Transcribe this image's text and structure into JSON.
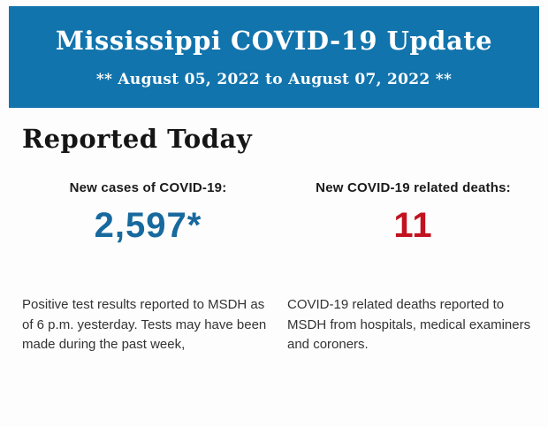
{
  "page": {
    "background_color": "#fdfdfd"
  },
  "header": {
    "title": "Mississippi COVID-19 Update",
    "subtitle": "** August 05, 2022 to August 07, 2022 **",
    "background_color": "#1274ac",
    "text_color": "#ffffff"
  },
  "report": {
    "heading": "Reported Today",
    "stats": [
      {
        "label": "New cases of COVID-19:",
        "value": "2,597*",
        "value_color": "#17699e",
        "description": "Positive test results reported to MSDH as of 6 p.m. yesterday. Tests may have been made during the past week,"
      },
      {
        "label": "New COVID-19 related deaths:",
        "value": "11",
        "value_color": "#c2121f",
        "description": "COVID-19 related deaths reported to MSDH from hospitals, medical examiners and coroners."
      }
    ]
  }
}
